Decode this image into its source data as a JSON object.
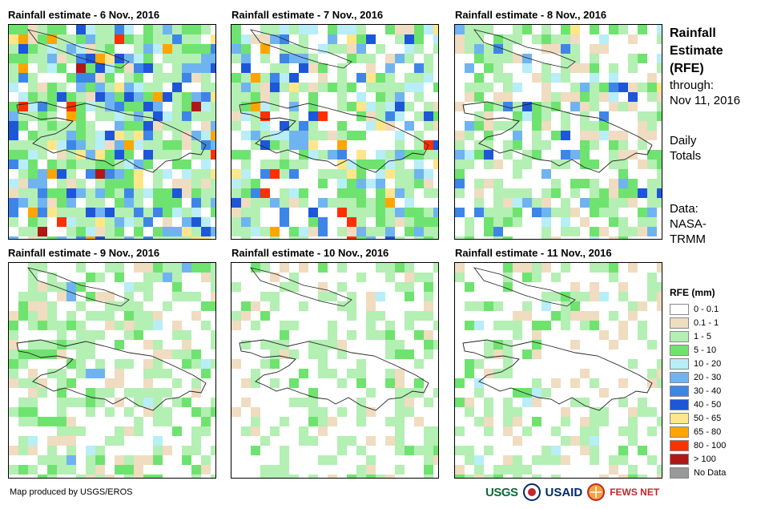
{
  "panels": [
    {
      "title": "Rainfall estimate - 6 Nov., 2016"
    },
    {
      "title": "Rainfall estimate - 7 Nov., 2016"
    },
    {
      "title": "Rainfall estimate - 8 Nov., 2016"
    },
    {
      "title": "Rainfall estimate - 9 Nov., 2016"
    },
    {
      "title": "Rainfall estimate - 10 Nov., 2016"
    },
    {
      "title": "Rainfall estimate - 11 Nov., 2016"
    }
  ],
  "side": {
    "heading": [
      "Rainfall",
      "Estimate",
      "(RFE)"
    ],
    "through_label": "through:",
    "through_date": "Nov 11, 2016",
    "totals": [
      "Daily",
      "Totals"
    ],
    "data_source": [
      "Data:",
      "NASA-",
      "TRMM"
    ]
  },
  "legend": {
    "title": "RFE (mm)",
    "items": [
      {
        "label": "0 - 0.1",
        "color": "#ffffff"
      },
      {
        "label": "0.1 - 1",
        "color": "#f0dcc0"
      },
      {
        "label": "1 - 5",
        "color": "#b4efb4"
      },
      {
        "label": "5 - 10",
        "color": "#6fe36f"
      },
      {
        "label": "10 - 20",
        "color": "#b8eef8"
      },
      {
        "label": "20 - 30",
        "color": "#6fb4f0"
      },
      {
        "label": "30 - 40",
        "color": "#3d86e8"
      },
      {
        "label": "40 - 50",
        "color": "#1e56d8"
      },
      {
        "label": "50 - 65",
        "color": "#ffe68a"
      },
      {
        "label": "65 - 80",
        "color": "#ffa500"
      },
      {
        "label": "80 - 100",
        "color": "#ff3000"
      },
      {
        "label": "> 100",
        "color": "#b01818"
      },
      {
        "label": "No Data",
        "color": "#999999"
      }
    ]
  },
  "credit": "Map produced by USGS/EROS",
  "logos": {
    "usgs": "USGS",
    "usaid": "USAID",
    "fews": "FEWS NET"
  }
}
